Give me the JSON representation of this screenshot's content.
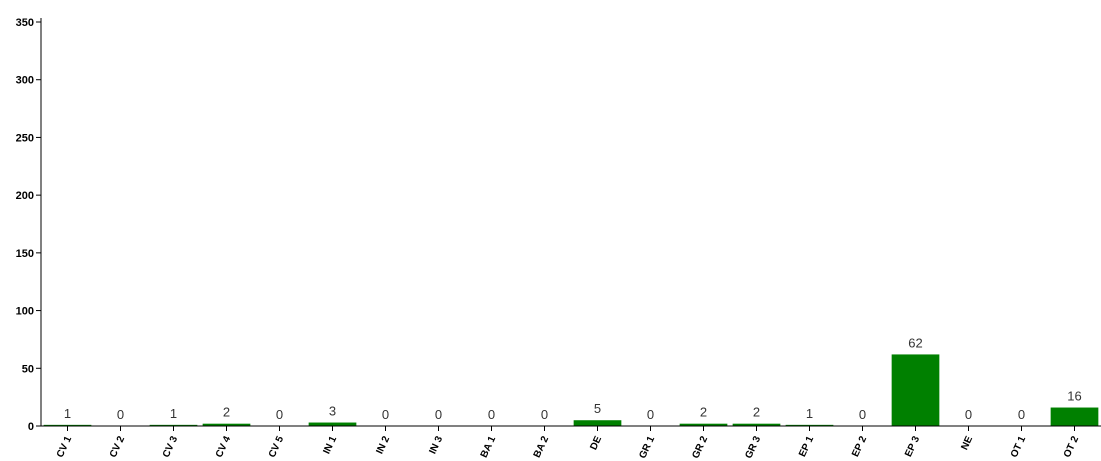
{
  "chart_data": {
    "type": "bar",
    "categories": [
      "CV 1",
      "CV 2",
      "CV 3",
      "CV 4",
      "CV 5",
      "IN 1",
      "IN 2",
      "IN 3",
      "BA 1",
      "BA 2",
      "DE",
      "GR 1",
      "GR 2",
      "GR 3",
      "EP 1",
      "EP 2",
      "EP 3",
      "NE",
      "OT 1",
      "OT 2"
    ],
    "values": [
      1,
      0,
      1,
      2,
      0,
      3,
      0,
      0,
      0,
      0,
      5,
      0,
      2,
      2,
      1,
      0,
      62,
      0,
      0,
      16
    ],
    "ylim": [
      0,
      350
    ],
    "yticks": [
      0,
      50,
      100,
      150,
      200,
      250,
      300,
      350
    ],
    "title": "",
    "xlabel": "",
    "ylabel": "",
    "grid": false,
    "bar_color": "#008000",
    "show_data_labels": true
  }
}
